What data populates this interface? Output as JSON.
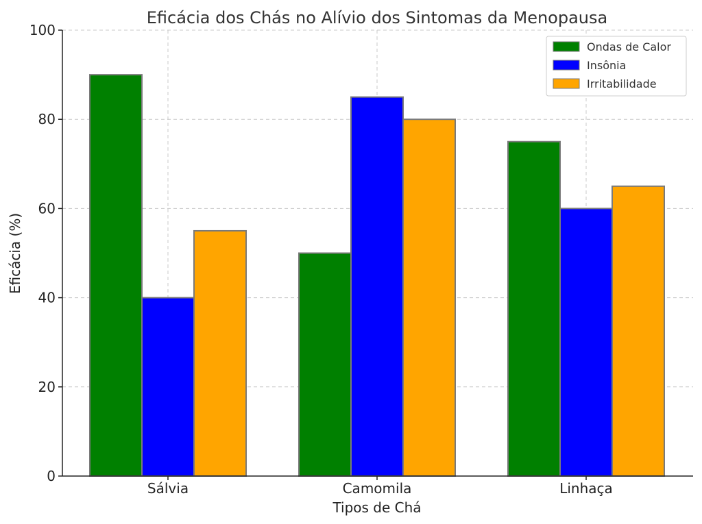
{
  "chart_data": {
    "type": "bar",
    "title": "Eficácia dos Chás no Alívio dos Sintomas da Menopausa",
    "xlabel": "Tipos de Chá",
    "ylabel": "Eficácia (%)",
    "categories": [
      "Sálvia",
      "Camomila",
      "Linhaça"
    ],
    "series": [
      {
        "name": "Ondas de Calor",
        "values": [
          90,
          50,
          75
        ],
        "color": "#008000"
      },
      {
        "name": "Insônia",
        "values": [
          40,
          85,
          60
        ],
        "color": "#0000ff"
      },
      {
        "name": "Irritabilidade",
        "values": [
          55,
          80,
          65
        ],
        "color": "#ffa500"
      }
    ],
    "ylim": [
      0,
      100
    ],
    "yticks": [
      0,
      20,
      40,
      60,
      80,
      100
    ],
    "grid": true,
    "legend_position": "top-right"
  }
}
